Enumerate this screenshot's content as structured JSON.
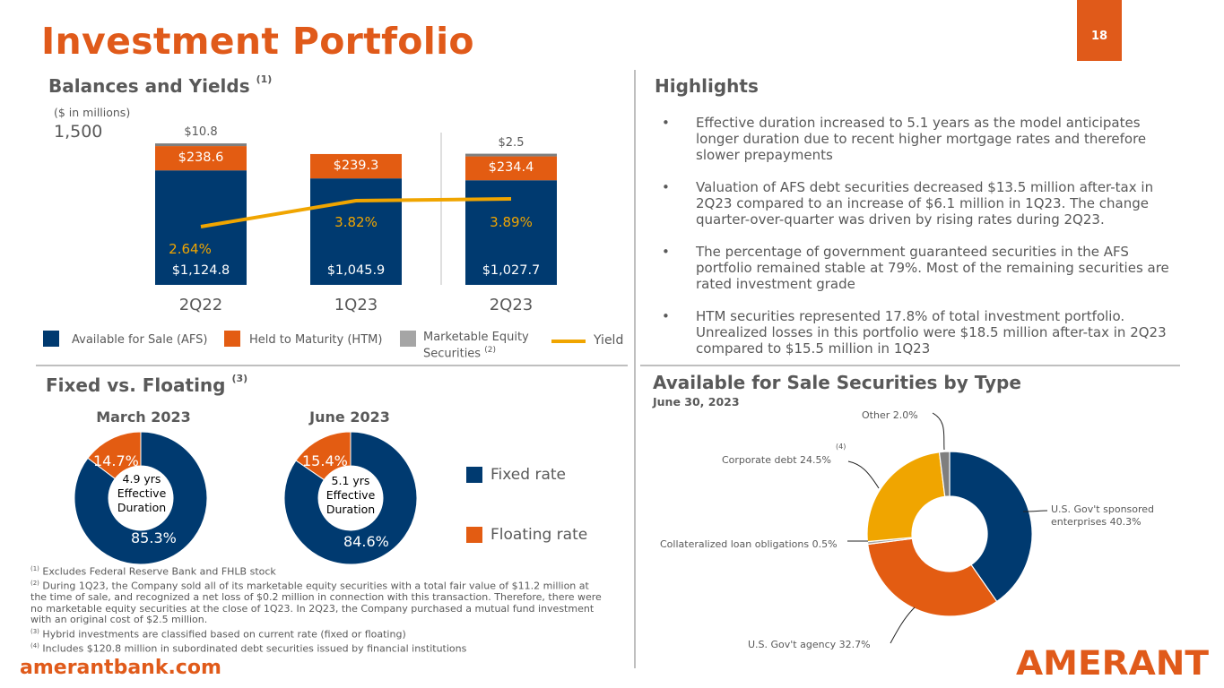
{
  "page_title": "Investment Portfolio",
  "page_number": "18",
  "website": "amerantbank.com",
  "logo_text": "AMERANT",
  "colors": {
    "accent": "#e05a1a",
    "navy": "#003a70",
    "orange": "#e35c12",
    "gray": "#7f7f7f",
    "gold": "#f0a500"
  },
  "balances": {
    "title": "Balances and Yields",
    "title_note": "(1)",
    "units": "($ in millions)",
    "axis_top_label": "1,500"
  },
  "chart_data": [
    {
      "type": "bar",
      "title": "Balances and Yields",
      "categories": [
        "2Q22",
        "1Q23",
        "2Q23"
      ],
      "ylim": [
        0,
        1500
      ],
      "series": [
        {
          "name": "Available for Sale (AFS)",
          "color": "#003a70",
          "values": [
            1124.8,
            1045.9,
            1027.7
          ],
          "labels": [
            "$1,124.8",
            "$1,045.9",
            "$1,027.7"
          ]
        },
        {
          "name": "Held to Maturity (HTM)",
          "color": "#e35c12",
          "values": [
            238.6,
            239.3,
            234.4
          ],
          "labels": [
            "$238.6",
            "$239.3",
            "$234.4"
          ]
        },
        {
          "name": "Marketable Equity Securities",
          "name_note": "(2)",
          "color": "#7f7f7f",
          "values": [
            10.8,
            0,
            2.5
          ],
          "labels": [
            "$10.8",
            "",
            "$2.5"
          ]
        }
      ],
      "line_series": {
        "name": "Yield",
        "color": "#f0a500",
        "values": [
          2.64,
          3.82,
          3.89
        ],
        "labels": [
          "2.64%",
          "3.82%",
          "3.89%"
        ]
      },
      "legend_position": "bottom"
    },
    {
      "type": "pie",
      "title": "March 2023",
      "slices": [
        {
          "name": "Fixed rate",
          "value": 85.3,
          "label": "85.3%",
          "color": "#003a70"
        },
        {
          "name": "Floating rate",
          "value": 14.7,
          "label": "14.7%",
          "color": "#e35c12"
        }
      ],
      "center_label": [
        "4.9 yrs",
        "Effective",
        "Duration"
      ]
    },
    {
      "type": "pie",
      "title": "June 2023",
      "slices": [
        {
          "name": "Fixed rate",
          "value": 84.6,
          "label": "84.6%",
          "color": "#003a70"
        },
        {
          "name": "Floating rate",
          "value": 15.4,
          "label": "15.4%",
          "color": "#e35c12"
        }
      ],
      "center_label": [
        "5.1 yrs",
        "Effective",
        "Duration"
      ]
    },
    {
      "type": "pie",
      "title": "Available for Sale Securities by Type",
      "subtitle": "June 30, 2023",
      "slices": [
        {
          "name": "U.S. Gov't sponsored enterprises",
          "value": 40.3,
          "label": "U.S. Gov't sponsored enterprises  40.3%",
          "color": "#003a70"
        },
        {
          "name": "U.S. Gov't agency",
          "value": 32.7,
          "label": "U.S. Gov't agency  32.7%",
          "color": "#e35c12"
        },
        {
          "name": "Collateralized loan obligations",
          "value": 0.5,
          "label": "Collateralized loan obligations 0.5%",
          "color": "#a5a5a5"
        },
        {
          "name": "Corporate debt",
          "value": 24.5,
          "label": "Corporate debt 24.5%",
          "note": "(4)",
          "color": "#f0a500"
        },
        {
          "name": "Other",
          "value": 2.0,
          "label": "Other 2.0%",
          "color": "#7f7f7f"
        }
      ]
    }
  ],
  "fixed_floating": {
    "title": "Fixed vs. Floating",
    "title_note": "(3)",
    "legend": [
      "Fixed rate",
      "Floating rate"
    ]
  },
  "highlights": {
    "title": "Highlights",
    "bullet": "•",
    "items": [
      "Effective duration increased to 5.1 years as the model anticipates longer duration due to recent higher mortgage rates and therefore slower prepayments",
      "Valuation of AFS debt securities decreased $13.5 million after-tax in 2Q23 compared to an increase of $6.1 million in 1Q23.  The change quarter-over-quarter was driven by rising rates during 2Q23.",
      "The percentage of government guaranteed securities in the AFS portfolio remained stable at 79%. Most of the remaining securities are rated investment grade",
      "HTM securities represented 17.8% of total investment portfolio. Unrealized losses in this portfolio were $18.5 million after-tax in 2Q23 compared to $15.5 million in 1Q23"
    ]
  },
  "footnotes": [
    {
      "mark": "(1)",
      "text": "Excludes Federal Reserve Bank and FHLB stock"
    },
    {
      "mark": "(2)",
      "text": "During 1Q23, the Company sold all of its marketable equity securities with a total fair value of $11.2 million at the time of sale, and recognized a net loss of $0.2 million in connection with this transaction. Therefore, there were no marketable equity securities at the close of 1Q23. In 2Q23, the Company purchased a mutual fund investment with an original cost of $2.5 million."
    },
    {
      "mark": "(3)",
      "text": "Hybrid investments are classified based on current rate (fixed or floating)"
    },
    {
      "mark": "(4)",
      "text": "Includes $120.8 million in subordinated debt securities issued by financial institutions"
    }
  ]
}
